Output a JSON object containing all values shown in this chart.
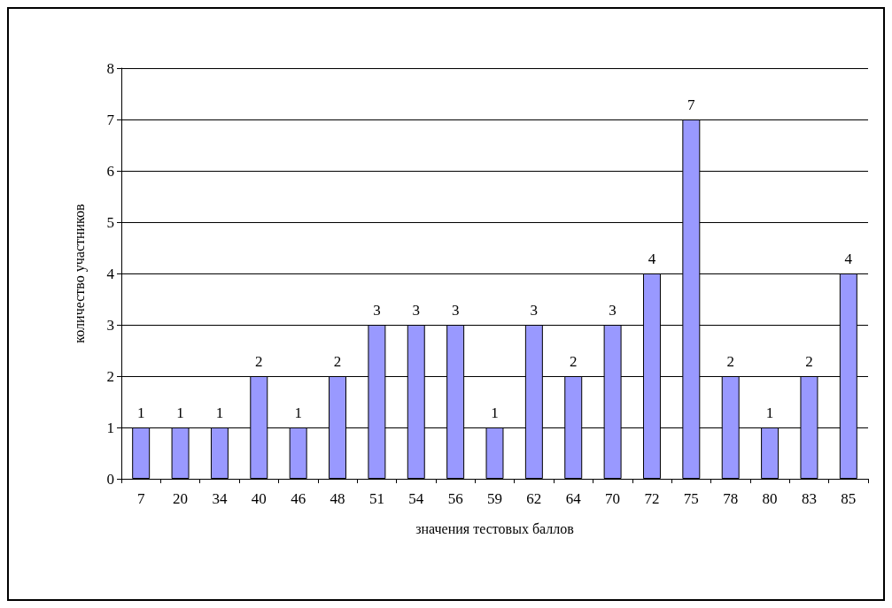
{
  "chart_data": {
    "type": "bar",
    "xlabel": "значения тестовых баллов",
    "ylabel": "количество участников",
    "categories": [
      "7",
      "20",
      "34",
      "40",
      "46",
      "48",
      "51",
      "54",
      "56",
      "59",
      "62",
      "64",
      "70",
      "72",
      "75",
      "78",
      "80",
      "83",
      "85"
    ],
    "values": [
      1,
      1,
      1,
      2,
      1,
      2,
      3,
      3,
      3,
      1,
      3,
      2,
      3,
      4,
      7,
      2,
      1,
      2,
      4
    ],
    "color": "#9999ff",
    "ylim": [
      0,
      8
    ],
    "yticks": [
      0,
      1,
      2,
      3,
      4,
      5,
      6,
      7,
      8
    ],
    "grid": "y",
    "data_labels": true
  }
}
